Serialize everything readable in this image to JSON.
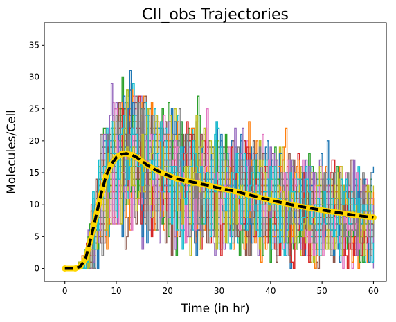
{
  "chart_data": {
    "type": "line",
    "title": "CII_obs Trajectories",
    "xlabel": "Time (in hr)",
    "ylabel": "Molecules/Cell",
    "xlim": [
      -4,
      62.5
    ],
    "ylim": [
      -2,
      38.5
    ],
    "xticks": [
      "0",
      "10",
      "20",
      "30",
      "40",
      "50",
      "60"
    ],
    "yticks": [
      "0",
      "5",
      "10",
      "15",
      "20",
      "25",
      "30",
      "35"
    ],
    "trajectory_colors": [
      "#1f77b4",
      "#ff7f0e",
      "#2ca02c",
      "#d62728",
      "#9467bd",
      "#8c564b",
      "#e377c2",
      "#7f7f7f",
      "#bcbd22",
      "#17becf"
    ],
    "trajectory_count": 40,
    "series": [
      {
        "style": "mean",
        "color": "#000000",
        "marker_color": "#ffd700",
        "x": [
          0,
          2,
          3,
          4,
          5,
          6,
          7,
          8,
          9,
          10,
          11,
          12,
          13,
          14,
          15,
          16,
          18,
          20,
          22,
          25,
          28,
          30,
          33,
          36,
          40,
          44,
          48,
          52,
          56,
          60
        ],
        "y": [
          0,
          0,
          0.3,
          1.5,
          4.5,
          8.0,
          11.5,
          14.5,
          16.3,
          17.4,
          17.9,
          18.0,
          17.8,
          17.4,
          16.8,
          16.2,
          15.3,
          14.6,
          14.0,
          13.5,
          13.0,
          12.6,
          12.1,
          11.5,
          10.7,
          10.0,
          9.4,
          8.9,
          8.4,
          8.0
        ]
      }
    ]
  }
}
